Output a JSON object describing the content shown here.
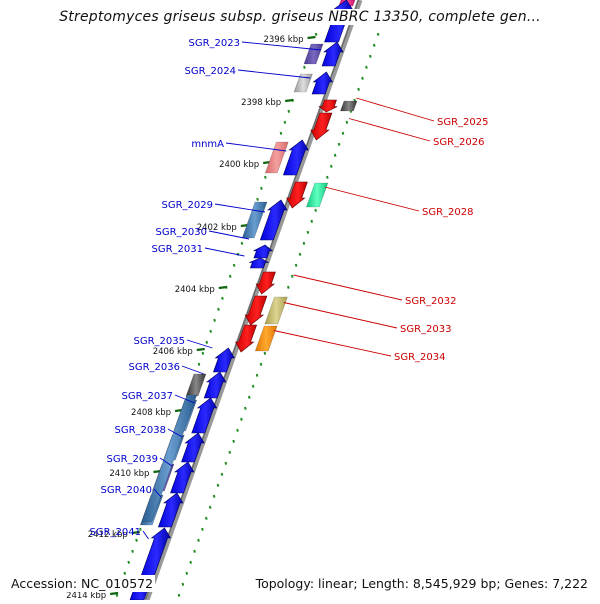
{
  "title": "Streptomyces griseus subsp. griseus NBRC 13350, complete gen...",
  "footer": {
    "accession": "Accession: NC_010572",
    "stats": "Topology: linear; Length: 8,545,929 bp; Genes: 7,222"
  },
  "colors": {
    "forward_gene": "#0000ff",
    "reverse_gene": "#ff0000",
    "forward_label": "#0000cc",
    "reverse_label": "#cc0000",
    "backbone": "#888888",
    "tick_dot": "#228b22"
  },
  "ticks": [
    {
      "label": "2396 kbp"
    },
    {
      "label": "2398 kbp"
    },
    {
      "label": "2400 kbp"
    },
    {
      "label": "2402 kbp"
    },
    {
      "label": "2404 kbp"
    },
    {
      "label": "2406 kbp"
    },
    {
      "label": "2408 kbp"
    },
    {
      "label": "2410 kbp"
    },
    {
      "label": "2412 kbp"
    },
    {
      "label": "2414 kbp"
    }
  ],
  "forward_genes": [
    {
      "label": "SGR_2023"
    },
    {
      "label": "SGR_2024"
    },
    {
      "label": "mnmA"
    },
    {
      "label": "SGR_2029"
    },
    {
      "label": "SGR_2030"
    },
    {
      "label": "SGR_2031"
    },
    {
      "label": "SGR_2035"
    },
    {
      "label": "SGR_2036"
    },
    {
      "label": "SGR_2037"
    },
    {
      "label": "SGR_2038"
    },
    {
      "label": "SGR_2039"
    },
    {
      "label": "SGR_2040"
    },
    {
      "label": "SGR_2041"
    }
  ],
  "reverse_genes": [
    {
      "label": "SGR_2025"
    },
    {
      "label": "SGR_2026"
    },
    {
      "label": "SGR_2028"
    },
    {
      "label": "SGR_2032"
    },
    {
      "label": "SGR_2033"
    },
    {
      "label": "SGR_2034"
    }
  ]
}
